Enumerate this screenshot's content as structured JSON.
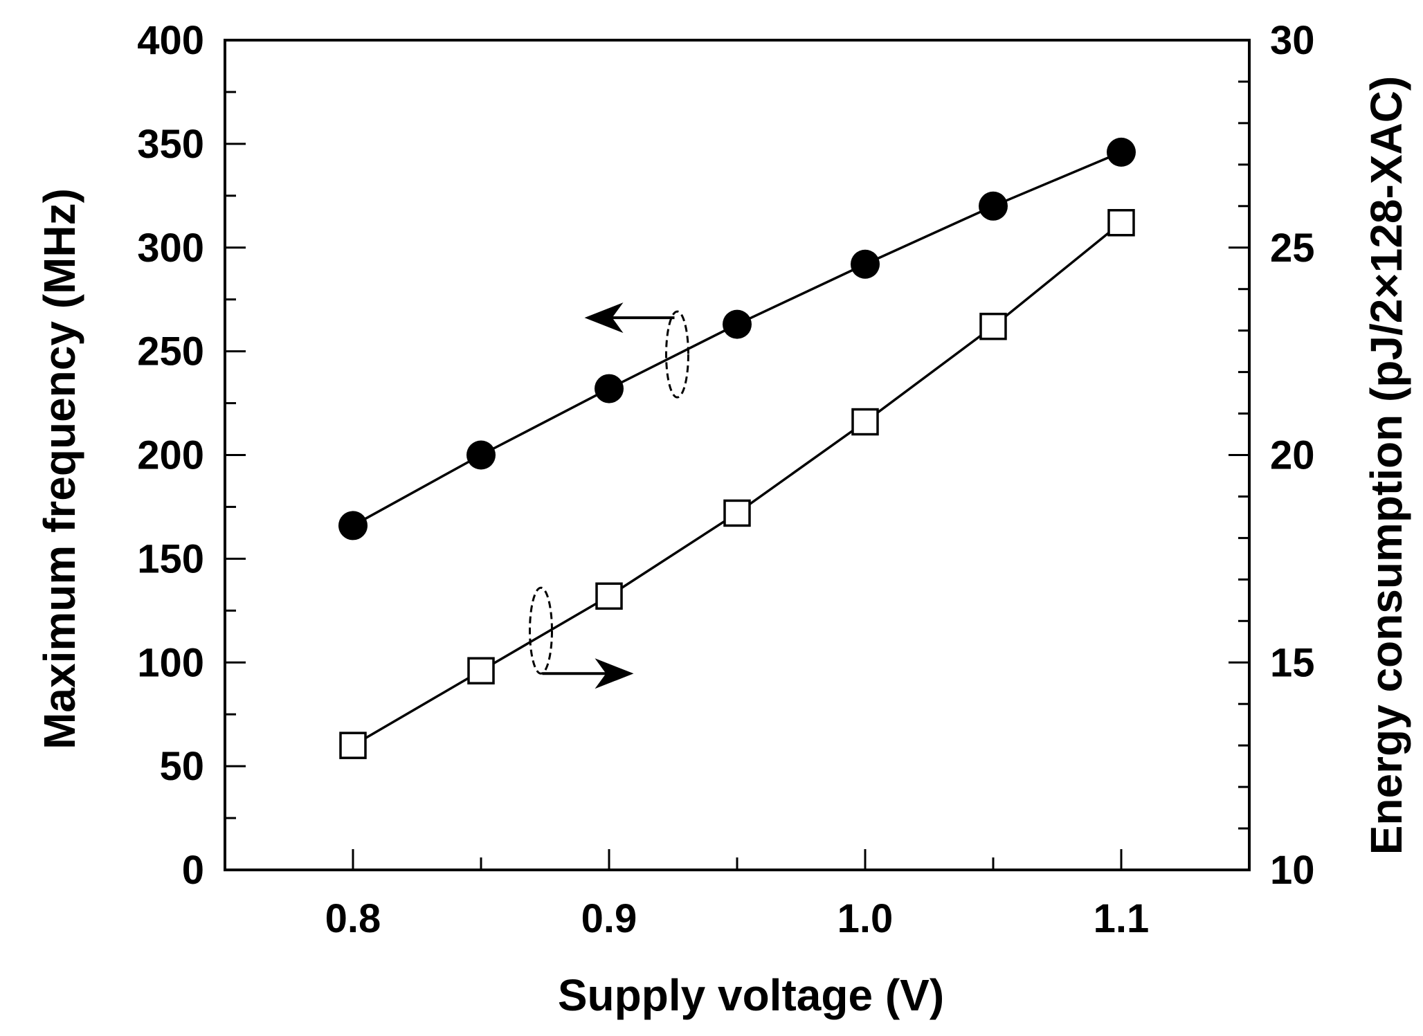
{
  "chart_data": {
    "type": "line",
    "title": "",
    "xlabel": "Supply voltage  (V)",
    "ylabel": "Maximum frequency  (MHz)",
    "y2label": "Energy consumption  (pJ/2×128-XAC)",
    "xlim": [
      0.75,
      1.15
    ],
    "ylim": [
      0,
      400
    ],
    "y2lim": [
      10,
      30
    ],
    "x": [
      0.8,
      0.85,
      0.9,
      0.95,
      1.0,
      1.05,
      1.1
    ],
    "x_ticks": [
      0.8,
      0.9,
      1.0,
      1.1
    ],
    "x_tick_labels": [
      "0.8",
      "0.9",
      "1.0",
      "1.1"
    ],
    "y_ticks": [
      0,
      50,
      100,
      150,
      200,
      250,
      300,
      350,
      400
    ],
    "y_tick_labels": [
      "0",
      "50",
      "100",
      "150",
      "200",
      "250",
      "300",
      "350",
      "400"
    ],
    "y2_ticks": [
      10,
      15,
      20,
      25,
      30
    ],
    "y2_tick_labels": [
      "10",
      "15",
      "20",
      "25",
      "30"
    ],
    "grid": false,
    "series": [
      {
        "name": "Maximum frequency",
        "axis": "left",
        "marker": "filled-circle",
        "values": [
          166,
          200,
          232,
          263,
          292,
          320,
          346
        ]
      },
      {
        "name": "Energy consumption",
        "axis": "right",
        "marker": "open-square",
        "values": [
          13.0,
          14.8,
          16.6,
          18.6,
          20.8,
          23.1,
          25.6
        ]
      }
    ],
    "annotations": [
      {
        "type": "arrow-left",
        "target": "Maximum frequency",
        "meaning": "left axis"
      },
      {
        "type": "arrow-right",
        "target": "Energy consumption",
        "meaning": "right axis"
      }
    ]
  }
}
